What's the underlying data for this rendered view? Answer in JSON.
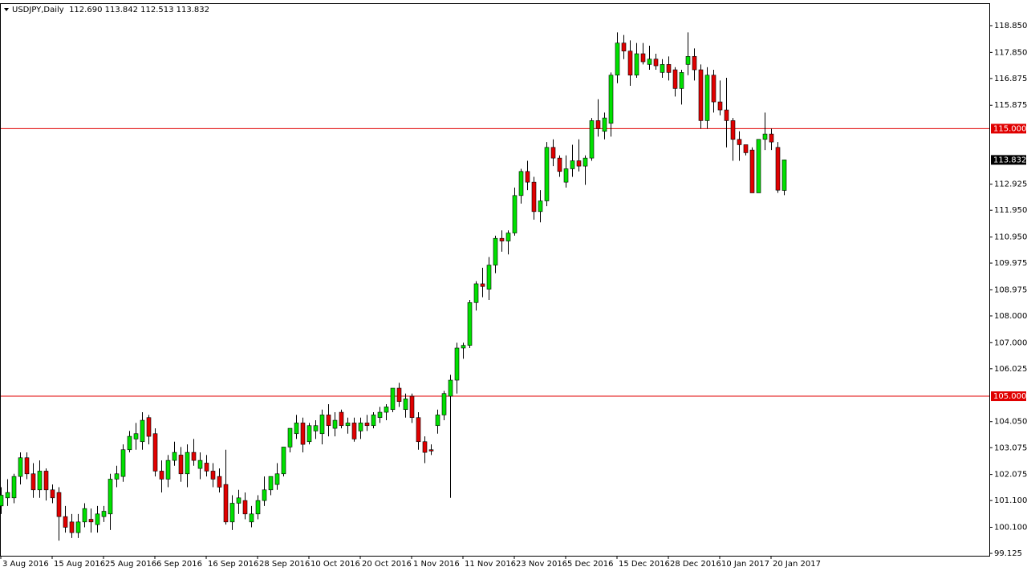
{
  "chart_data": {
    "type": "candlestick",
    "title": "USDJPY,Daily  112.690 113.842 112.513 113.832",
    "categories": [
      "3 Aug 2016",
      null,
      null,
      null,
      null,
      null,
      null,
      null,
      "15 Aug 2016",
      null,
      null,
      null,
      null,
      null,
      null,
      null,
      "25 Aug 2016",
      null,
      null,
      null,
      null,
      null,
      null,
      null,
      "6 Sep 2016",
      null,
      null,
      null,
      null,
      null,
      null,
      null,
      "16 Sep 2016",
      null,
      null,
      null,
      null,
      null,
      null,
      null,
      "28 Sep 2016",
      null,
      null,
      null,
      null,
      null,
      null,
      null,
      "10 Oct 2016",
      null,
      null,
      null,
      null,
      null,
      null,
      null,
      "20 Oct 2016",
      null,
      null,
      null,
      null,
      null,
      null,
      null,
      "1 Nov 2016",
      null,
      null,
      null,
      null,
      null,
      null,
      null,
      "11 Nov 2016",
      null,
      null,
      null,
      null,
      null,
      null,
      null,
      "23 Nov 2016",
      null,
      null,
      null,
      null,
      null,
      null,
      null,
      "5 Dec 2016",
      null,
      null,
      null,
      null,
      null,
      null,
      null,
      "15 Dec 2016",
      null,
      null,
      null,
      null,
      null,
      null,
      null,
      "28 Dec 2016",
      null,
      null,
      null,
      null,
      null,
      null,
      null,
      "10 Jan 2017",
      null,
      null,
      null,
      null,
      null,
      null,
      null,
      "20 Jan 2017",
      null,
      null
    ],
    "ohlc": [
      [
        100.9,
        101.6,
        100.6,
        101.3
      ],
      [
        101.2,
        101.9,
        100.9,
        101.4
      ],
      [
        101.2,
        102.1,
        101.0,
        102.0
      ],
      [
        102.0,
        102.9,
        101.7,
        102.7
      ],
      [
        102.7,
        102.9,
        101.9,
        102.1
      ],
      [
        102.1,
        102.5,
        101.2,
        101.5
      ],
      [
        101.5,
        102.6,
        101.2,
        102.2
      ],
      [
        102.2,
        102.3,
        101.1,
        101.5
      ],
      [
        101.5,
        101.7,
        101.0,
        101.2
      ],
      [
        101.4,
        101.6,
        99.6,
        100.5
      ],
      [
        100.5,
        100.9,
        99.9,
        100.1
      ],
      [
        100.3,
        100.6,
        99.7,
        99.9
      ],
      [
        99.9,
        100.6,
        99.7,
        100.3
      ],
      [
        100.3,
        101.0,
        100.1,
        100.8
      ],
      [
        100.4,
        100.8,
        99.9,
        100.3
      ],
      [
        100.2,
        100.9,
        99.9,
        100.6
      ],
      [
        100.5,
        100.9,
        100.3,
        100.7
      ],
      [
        100.6,
        102.1,
        100.0,
        101.9
      ],
      [
        101.9,
        102.4,
        101.6,
        102.1
      ],
      [
        102.0,
        103.2,
        101.8,
        103.0
      ],
      [
        103.0,
        103.7,
        102.9,
        103.5
      ],
      [
        103.4,
        104.0,
        103.0,
        103.6
      ],
      [
        103.3,
        104.4,
        103.0,
        104.1
      ],
      [
        104.2,
        104.3,
        103.2,
        103.5
      ],
      [
        103.6,
        103.8,
        102.0,
        102.2
      ],
      [
        102.2,
        102.6,
        101.4,
        101.9
      ],
      [
        101.9,
        102.8,
        101.6,
        102.6
      ],
      [
        102.6,
        103.3,
        102.4,
        102.9
      ],
      [
        102.8,
        103.1,
        101.8,
        102.1
      ],
      [
        102.1,
        103.2,
        101.6,
        102.9
      ],
      [
        102.9,
        103.4,
        102.4,
        102.6
      ],
      [
        102.3,
        102.9,
        101.9,
        102.6
      ],
      [
        102.5,
        102.8,
        102.0,
        102.2
      ],
      [
        102.2,
        102.5,
        101.6,
        101.9
      ],
      [
        102.0,
        102.3,
        101.4,
        101.6
      ],
      [
        101.7,
        103.0,
        100.2,
        100.3
      ],
      [
        100.3,
        101.3,
        100.0,
        101.0
      ],
      [
        101.0,
        101.5,
        100.6,
        101.2
      ],
      [
        101.1,
        101.4,
        100.4,
        100.6
      ],
      [
        100.3,
        100.9,
        100.1,
        100.6
      ],
      [
        100.6,
        101.3,
        100.4,
        101.1
      ],
      [
        101.1,
        102.0,
        100.9,
        101.5
      ],
      [
        101.5,
        102.0,
        101.3,
        102.0
      ],
      [
        101.7,
        102.5,
        101.5,
        102.1
      ],
      [
        102.1,
        103.1,
        102.0,
        103.1
      ],
      [
        103.1,
        103.8,
        102.9,
        103.8
      ],
      [
        103.6,
        104.3,
        103.4,
        104.0
      ],
      [
        104.0,
        104.2,
        102.9,
        103.2
      ],
      [
        103.3,
        104.0,
        103.2,
        103.9
      ],
      [
        103.7,
        104.1,
        103.4,
        103.9
      ],
      [
        103.6,
        104.5,
        103.2,
        104.3
      ],
      [
        104.3,
        104.7,
        103.5,
        103.9
      ],
      [
        103.8,
        104.4,
        103.5,
        104.1
      ],
      [
        104.4,
        104.5,
        103.8,
        103.9
      ],
      [
        103.9,
        104.2,
        103.6,
        104.0
      ],
      [
        104.0,
        104.2,
        103.3,
        103.4
      ],
      [
        103.7,
        104.2,
        103.4,
        104.0
      ],
      [
        104.0,
        104.3,
        103.7,
        103.9
      ],
      [
        103.9,
        104.4,
        103.8,
        104.3
      ],
      [
        104.2,
        104.6,
        104.0,
        104.4
      ],
      [
        104.4,
        104.7,
        104.1,
        104.6
      ],
      [
        104.5,
        105.3,
        104.4,
        105.3
      ],
      [
        105.3,
        105.5,
        104.6,
        104.8
      ],
      [
        104.5,
        105.1,
        104.2,
        104.9
      ],
      [
        105.0,
        105.1,
        104.0,
        104.2
      ],
      [
        104.2,
        104.4,
        103.0,
        103.3
      ],
      [
        103.3,
        103.5,
        102.5,
        102.9
      ],
      [
        103.0,
        103.2,
        102.8,
        102.95
      ],
      [
        103.9,
        104.5,
        103.6,
        104.3
      ],
      [
        104.3,
        105.2,
        104.1,
        105.1
      ],
      [
        105.0,
        105.8,
        101.2,
        105.6
      ],
      [
        105.6,
        107.0,
        105.1,
        106.8
      ],
      [
        106.8,
        107.0,
        106.4,
        106.9
      ],
      [
        106.9,
        108.6,
        106.8,
        108.5
      ],
      [
        108.5,
        109.3,
        108.2,
        109.2
      ],
      [
        109.2,
        109.8,
        108.7,
        109.1
      ],
      [
        109.0,
        110.2,
        108.6,
        109.9
      ],
      [
        109.9,
        111.0,
        109.6,
        110.9
      ],
      [
        110.9,
        111.2,
        110.4,
        110.8
      ],
      [
        110.8,
        111.2,
        110.3,
        111.1
      ],
      [
        111.1,
        112.8,
        111.0,
        112.5
      ],
      [
        112.5,
        113.5,
        112.2,
        113.4
      ],
      [
        113.4,
        113.8,
        112.7,
        113.0
      ],
      [
        113.0,
        113.2,
        111.6,
        111.9
      ],
      [
        111.9,
        112.7,
        111.5,
        112.3
      ],
      [
        112.3,
        114.5,
        112.1,
        114.3
      ],
      [
        114.3,
        114.6,
        113.6,
        113.9
      ],
      [
        113.9,
        114.0,
        113.2,
        113.4
      ],
      [
        113.0,
        114.0,
        112.8,
        113.5
      ],
      [
        113.5,
        114.4,
        113.2,
        113.8
      ],
      [
        113.8,
        114.6,
        113.4,
        113.6
      ],
      [
        113.6,
        114.0,
        112.9,
        113.9
      ],
      [
        113.9,
        115.4,
        113.8,
        115.3
      ],
      [
        115.3,
        116.1,
        114.7,
        115.0
      ],
      [
        114.9,
        115.6,
        114.6,
        115.4
      ],
      [
        115.2,
        117.1,
        114.7,
        117.0
      ],
      [
        117.0,
        118.6,
        116.7,
        118.2
      ],
      [
        118.2,
        118.5,
        117.6,
        117.9
      ],
      [
        117.9,
        118.3,
        116.6,
        117.0
      ],
      [
        117.0,
        118.2,
        116.9,
        117.8
      ],
      [
        117.8,
        118.2,
        117.4,
        117.5
      ],
      [
        117.4,
        118.1,
        117.2,
        117.6
      ],
      [
        117.6,
        117.8,
        117.2,
        117.35
      ],
      [
        117.1,
        117.6,
        116.9,
        117.4
      ],
      [
        117.4,
        117.7,
        116.8,
        117.1
      ],
      [
        117.2,
        117.3,
        116.2,
        116.5
      ],
      [
        116.5,
        117.2,
        115.9,
        117.1
      ],
      [
        117.4,
        118.6,
        117.0,
        117.7
      ],
      [
        117.7,
        118.0,
        116.8,
        117.2
      ],
      [
        117.2,
        117.4,
        115.0,
        115.3
      ],
      [
        115.3,
        117.3,
        115.0,
        117.0
      ],
      [
        117.0,
        117.2,
        115.6,
        116.0
      ],
      [
        116.0,
        116.8,
        115.5,
        115.7
      ],
      [
        115.7,
        116.9,
        114.3,
        115.3
      ],
      [
        115.3,
        115.4,
        113.8,
        114.6
      ],
      [
        114.6,
        114.9,
        113.8,
        114.4
      ],
      [
        114.4,
        114.4,
        114.0,
        114.1
      ],
      [
        114.2,
        114.3,
        112.6,
        112.6
      ],
      [
        112.6,
        114.6,
        112.6,
        114.6
      ],
      [
        114.6,
        115.6,
        114.2,
        114.8
      ],
      [
        114.8,
        115.0,
        114.2,
        114.5
      ],
      [
        114.3,
        114.5,
        112.6,
        112.7
      ],
      [
        112.69,
        113.842,
        112.513,
        113.832
      ]
    ],
    "up_color": "#00e000",
    "down_color": "#e00000",
    "ylim": [
      99.036,
      119.689
    ],
    "yticks": [
      {
        "value": 118.85,
        "label": "118.850"
      },
      {
        "value": 117.85,
        "label": "117.850"
      },
      {
        "value": 116.875,
        "label": "116.875"
      },
      {
        "value": 115.875,
        "label": "115.875"
      },
      {
        "value": 112.925,
        "label": "112.925"
      },
      {
        "value": 111.95,
        "label": "111.950"
      },
      {
        "value": 110.95,
        "label": "110.950"
      },
      {
        "value": 109.975,
        "label": "109.975"
      },
      {
        "value": 108.975,
        "label": "108.975"
      },
      {
        "value": 108,
        "label": "108.000"
      },
      {
        "value": 107,
        "label": "107.000"
      },
      {
        "value": 106.025,
        "label": "106.025"
      },
      {
        "value": 104.05,
        "label": "104.050"
      },
      {
        "value": 103.075,
        "label": "103.075"
      },
      {
        "value": 102.075,
        "label": "102.075"
      },
      {
        "value": 101.1,
        "label": "101.100"
      },
      {
        "value": 100.1,
        "label": "100.100"
      },
      {
        "value": 99.125,
        "label": "99.125"
      }
    ],
    "hlines": [
      {
        "value": 115,
        "label": "115.000",
        "color": "#e00000"
      },
      {
        "value": 105,
        "label": "105.000",
        "color": "#e00000"
      }
    ],
    "last_price": 113.832
  }
}
